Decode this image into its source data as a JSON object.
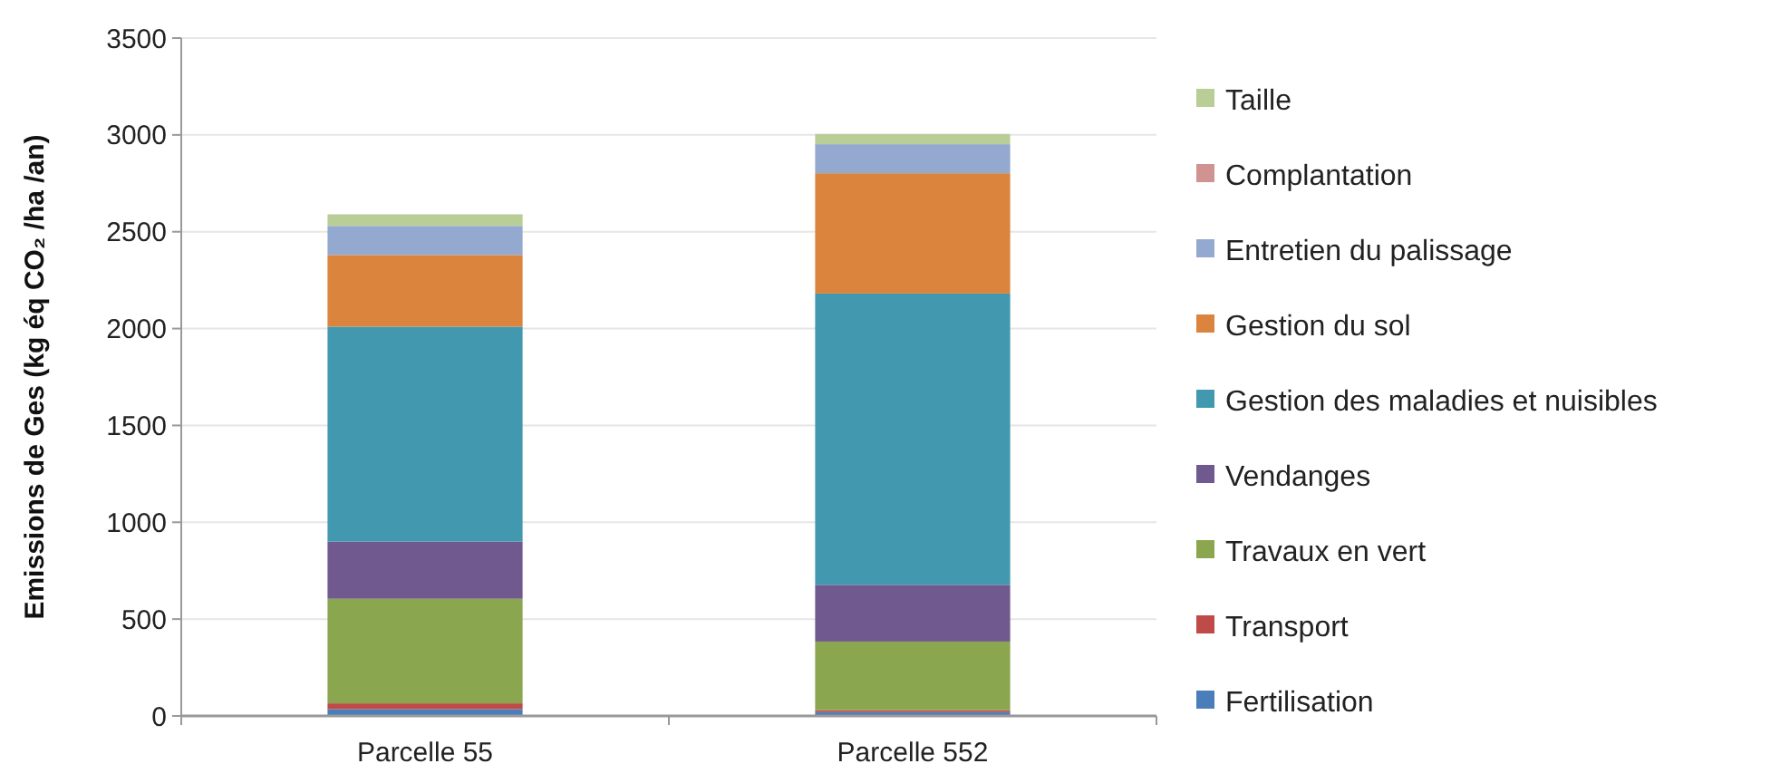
{
  "chart_data": {
    "type": "bar",
    "stacked": true,
    "ylabel": "Emissions de Ges (kg éq CO₂ /ha /an)",
    "categories": [
      "Parcelle 55",
      "Parcelle 552"
    ],
    "ylim": [
      0,
      3500
    ],
    "yticks": [
      0,
      500,
      1000,
      1500,
      2000,
      2500,
      3000,
      3500
    ],
    "grid": "y",
    "legend": "right",
    "series": [
      {
        "name": "Fertilisation",
        "color": "#4a7ebb",
        "values": [
          35,
          20
        ]
      },
      {
        "name": "Transport",
        "color": "#be4b48",
        "values": [
          30,
          10
        ]
      },
      {
        "name": "Travaux en vert",
        "color": "#8aa64e",
        "values": [
          540,
          354
        ]
      },
      {
        "name": "Vendanges",
        "color": "#70598f",
        "values": [
          295,
          293
        ]
      },
      {
        "name": "Gestion des maladies et nuisibles",
        "color": "#4198af",
        "values": [
          1110,
          1504
        ]
      },
      {
        "name": "Gestion du sol",
        "color": "#db843d",
        "values": [
          370,
          621
        ]
      },
      {
        "name": "Entretien du palissage",
        "color": "#93a9cf",
        "values": [
          150,
          150
        ]
      },
      {
        "name": "Complantation",
        "color": "#d19392",
        "values": [
          0,
          0
        ]
      },
      {
        "name": "Taille",
        "color": "#b9cd96",
        "values": [
          60,
          53
        ]
      }
    ]
  }
}
